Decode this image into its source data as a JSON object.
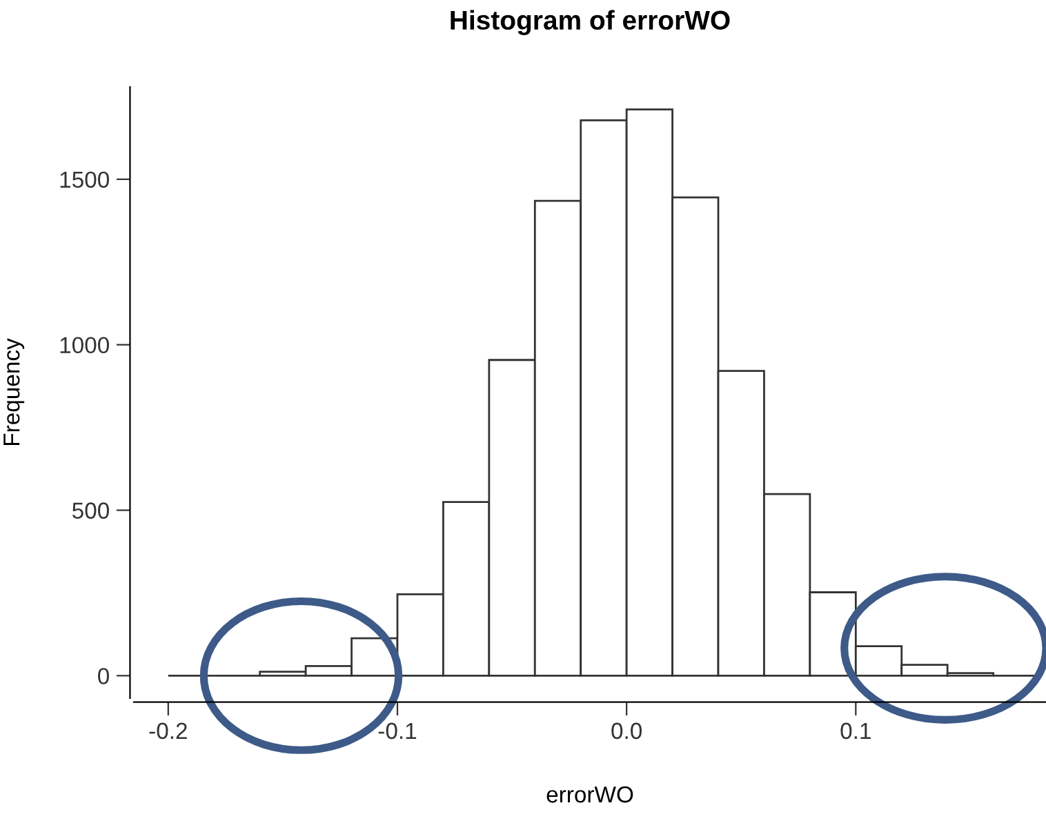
{
  "chart_data": {
    "type": "histogram",
    "title": "Histogram of errorWO",
    "xlabel": "errorWO",
    "ylabel": "Frequency",
    "bins": [
      -0.2,
      -0.18,
      -0.16,
      -0.14,
      -0.12,
      -0.1,
      -0.08,
      -0.06,
      -0.04,
      -0.02,
      0.0,
      0.02,
      0.04,
      0.06,
      0.08,
      0.1,
      0.12,
      0.14,
      0.16,
      0.18
    ],
    "values": [
      0,
      0,
      12,
      29,
      113,
      246,
      525,
      954,
      1435,
      1678,
      1711,
      1445,
      921,
      549,
      252,
      89,
      33,
      8,
      0
    ],
    "color": "#333333",
    "xlim": [
      -0.215,
      0.183
    ],
    "ylim": [
      -68,
      1779
    ],
    "xticks": [
      {
        "value": -0.2,
        "label": "-0.2"
      },
      {
        "value": -0.1,
        "label": "-0.1"
      },
      {
        "value": 0,
        "label": "0.0"
      },
      {
        "value": 0.1,
        "label": "0.1"
      }
    ],
    "yticks": [
      0,
      500,
      1000,
      1500
    ],
    "grid": false
  }
}
